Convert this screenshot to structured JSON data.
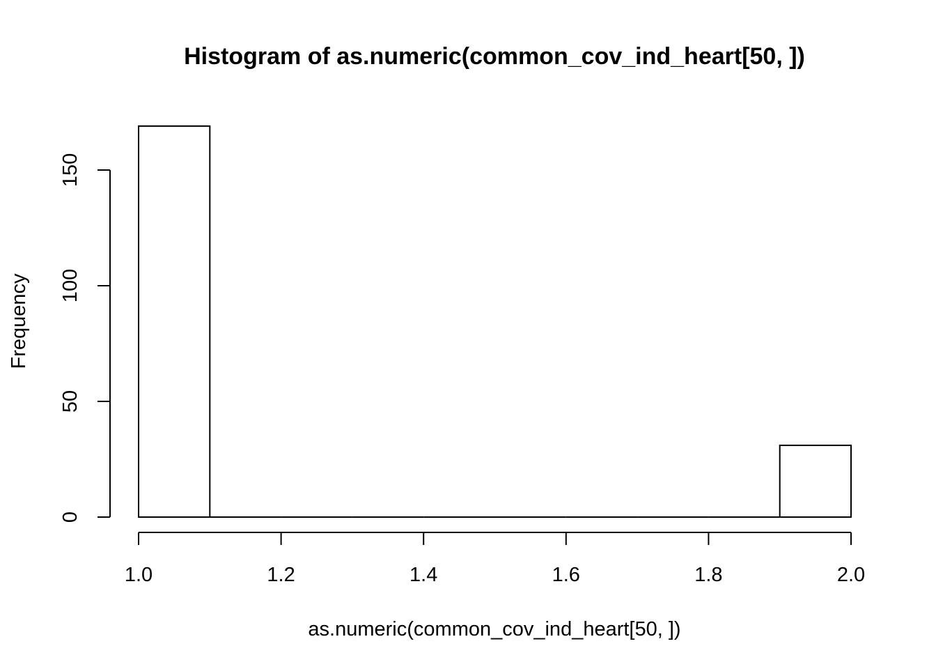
{
  "chart_data": {
    "type": "bar",
    "title": "Histogram of as.numeric(common_cov_ind_heart[50, ])",
    "xlabel": "as.numeric(common_cov_ind_heart[50, ])",
    "ylabel": "Frequency",
    "bins": [
      {
        "x0": 1.0,
        "x1": 1.1,
        "count": 169
      },
      {
        "x0": 1.1,
        "x1": 1.2,
        "count": 0
      },
      {
        "x0": 1.2,
        "x1": 1.3,
        "count": 0
      },
      {
        "x0": 1.3,
        "x1": 1.4,
        "count": 0
      },
      {
        "x0": 1.4,
        "x1": 1.5,
        "count": 0
      },
      {
        "x0": 1.5,
        "x1": 1.6,
        "count": 0
      },
      {
        "x0": 1.6,
        "x1": 1.7,
        "count": 0
      },
      {
        "x0": 1.7,
        "x1": 1.8,
        "count": 0
      },
      {
        "x0": 1.8,
        "x1": 1.9,
        "count": 0
      },
      {
        "x0": 1.9,
        "x1": 2.0,
        "count": 31
      }
    ],
    "xlim": [
      1.0,
      2.0
    ],
    "ylim": [
      0,
      169
    ],
    "x_ticks": [
      1.0,
      1.2,
      1.4,
      1.6,
      1.8,
      2.0
    ],
    "x_tick_labels": [
      "1.0",
      "1.2",
      "1.4",
      "1.6",
      "1.8",
      "2.0"
    ],
    "y_ticks": [
      0,
      50,
      100,
      150
    ],
    "y_tick_labels": [
      "0",
      "50",
      "100",
      "150"
    ],
    "grid": false,
    "legend": "none",
    "bar_fill": "#ffffff",
    "bar_stroke": "#000000"
  }
}
